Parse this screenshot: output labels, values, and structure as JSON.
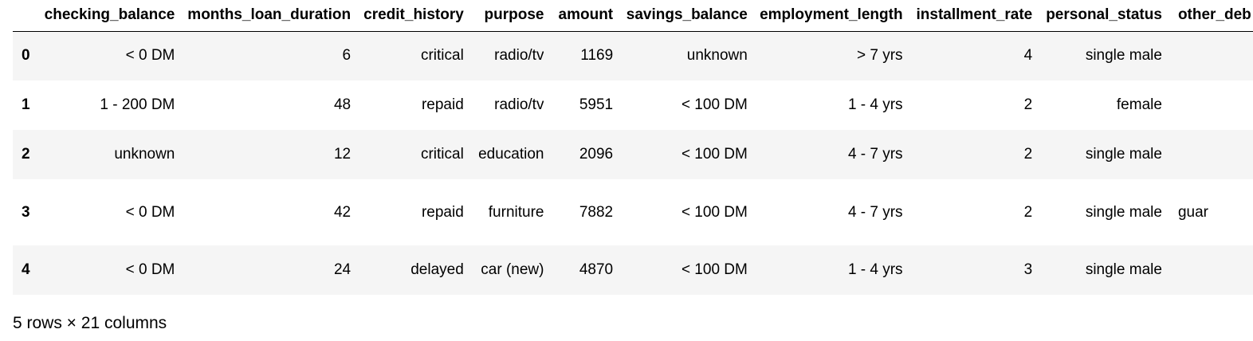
{
  "table": {
    "columns": [
      "checking_balance",
      "months_loan_duration",
      "credit_history",
      "purpose",
      "amount",
      "savings_balance",
      "employment_length",
      "installment_rate",
      "personal_status",
      "other_deb"
    ],
    "rows": [
      {
        "index": "0",
        "cells": [
          "< 0 DM",
          "6",
          "critical",
          "radio/tv",
          "1169",
          "unknown",
          "> 7 yrs",
          "4",
          "single male",
          ""
        ]
      },
      {
        "index": "1",
        "cells": [
          "1 - 200 DM",
          "48",
          "repaid",
          "radio/tv",
          "5951",
          "< 100 DM",
          "1 - 4 yrs",
          "2",
          "female",
          ""
        ]
      },
      {
        "index": "2",
        "cells": [
          "unknown",
          "12",
          "critical",
          "education",
          "2096",
          "< 100 DM",
          "4 - 7 yrs",
          "2",
          "single male",
          ""
        ]
      },
      {
        "index": "3",
        "cells": [
          "< 0 DM",
          "42",
          "repaid",
          "furniture",
          "7882",
          "< 100 DM",
          "4 - 7 yrs",
          "2",
          "single male",
          "guar"
        ]
      },
      {
        "index": "4",
        "cells": [
          "< 0 DM",
          "24",
          "delayed",
          "car (new)",
          "4870",
          "< 100 DM",
          "1 - 4 yrs",
          "3",
          "single male",
          ""
        ]
      }
    ]
  },
  "footer": {
    "summary": "5 rows × 21 columns"
  }
}
